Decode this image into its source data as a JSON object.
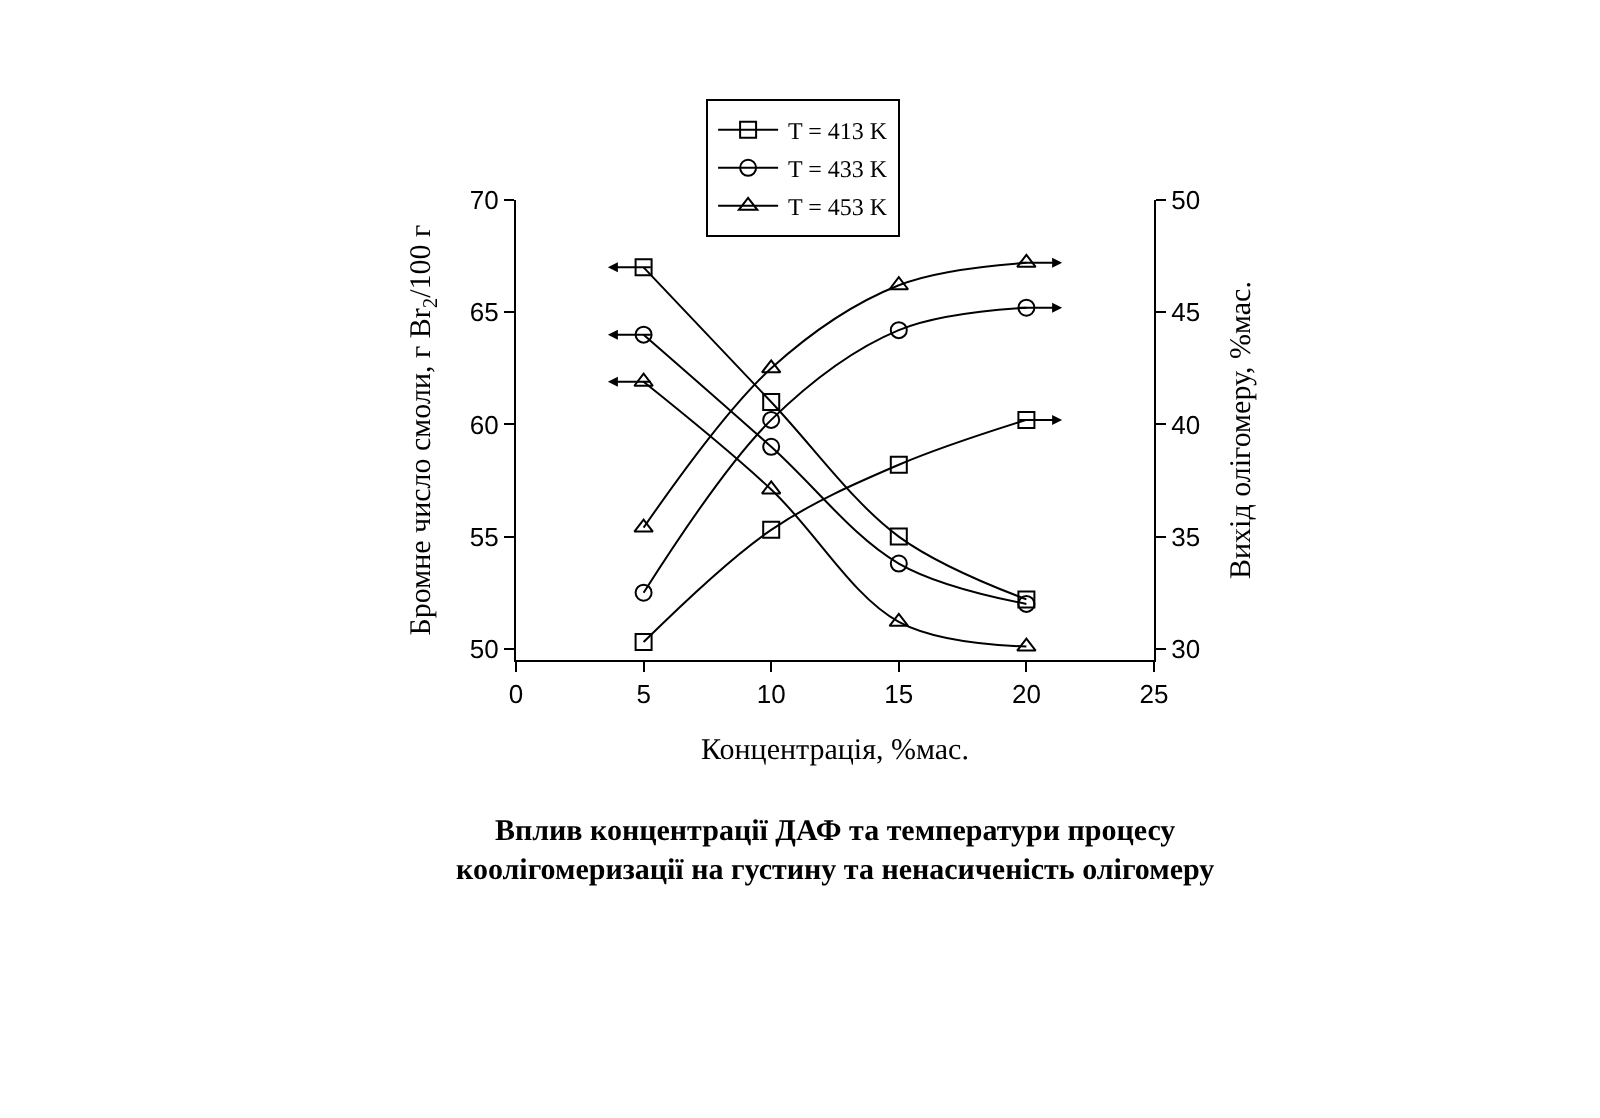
{
  "chart_data": {
    "type": "line",
    "title": "Вплив концентрації ДАФ та температури процесу\nкоолігомеризації на густину та ненасиченість олігомеру",
    "xlabel": "Концентрація, %мас.",
    "ylabel": "Бромне число смоли, г Br$_{2}$/100 г",
    "y2label": "Вихід олігомеру, %мас.",
    "x": [
      5,
      10,
      15,
      20
    ],
    "xlim": [
      0,
      25
    ],
    "xticks": [
      0,
      5,
      10,
      15,
      20,
      25
    ],
    "ylim": [
      49.5,
      70
    ],
    "yticks": [
      50,
      55,
      60,
      65,
      70
    ],
    "y2lim": [
      29.5,
      50
    ],
    "y2ticks": [
      30,
      35,
      40,
      45,
      50
    ],
    "legend": "top",
    "line_style": "solid",
    "series": [
      {
        "name": "T = 413 K",
        "color": "#000000",
        "marker": "square",
        "values": [
          67.0,
          61.0,
          55.0,
          52.2
        ]
      },
      {
        "name": "T = 433 K",
        "color": "#000000",
        "marker": "circle",
        "values": [
          64.0,
          59.0,
          53.8,
          52.0
        ]
      },
      {
        "name": "T = 453 K",
        "color": "#000000",
        "marker": "triangle",
        "values": [
          61.9,
          57.1,
          51.2,
          50.1
        ]
      },
      {
        "color": "#000000",
        "marker": "square",
        "axis": "y2",
        "values": [
          30.3,
          35.3,
          38.2,
          40.2
        ]
      },
      {
        "color": "#000000",
        "marker": "circle",
        "axis": "y2",
        "values": [
          32.5,
          40.2,
          44.2,
          45.2
        ]
      },
      {
        "color": "#000000",
        "marker": "triangle",
        "axis": "y2",
        "values": [
          35.4,
          42.5,
          46.2,
          47.2
        ]
      }
    ]
  }
}
